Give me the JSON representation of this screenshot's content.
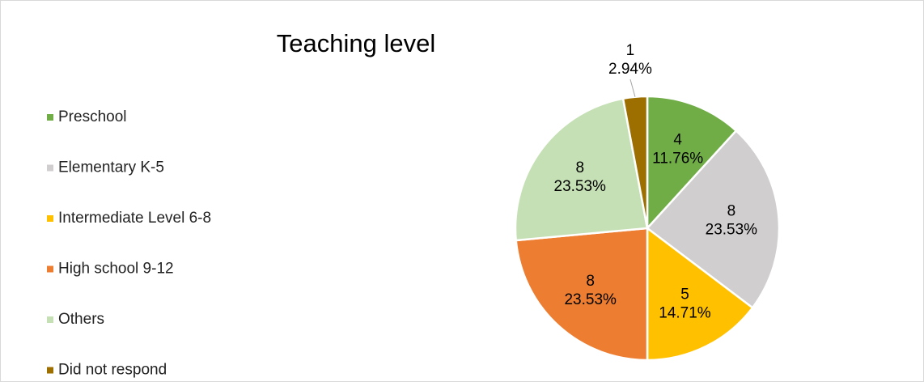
{
  "chart_data": {
    "type": "pie",
    "title": "Teaching level",
    "categories": [
      "Preschool",
      "Elementary K-5",
      "Intermediate Level 6-8",
      "High school 9-12",
      "Others",
      "Did not respond"
    ],
    "values": [
      4,
      8,
      5,
      8,
      8,
      1
    ],
    "percent_labels": [
      "11.76%",
      "23.53%",
      "14.71%",
      "23.53%",
      "23.53%",
      "2.94%"
    ],
    "colors": [
      "#70ad47",
      "#d0cece",
      "#ffc000",
      "#ed7d31",
      "#c5e0b4",
      "#9c6f00"
    ],
    "legend": "left"
  }
}
